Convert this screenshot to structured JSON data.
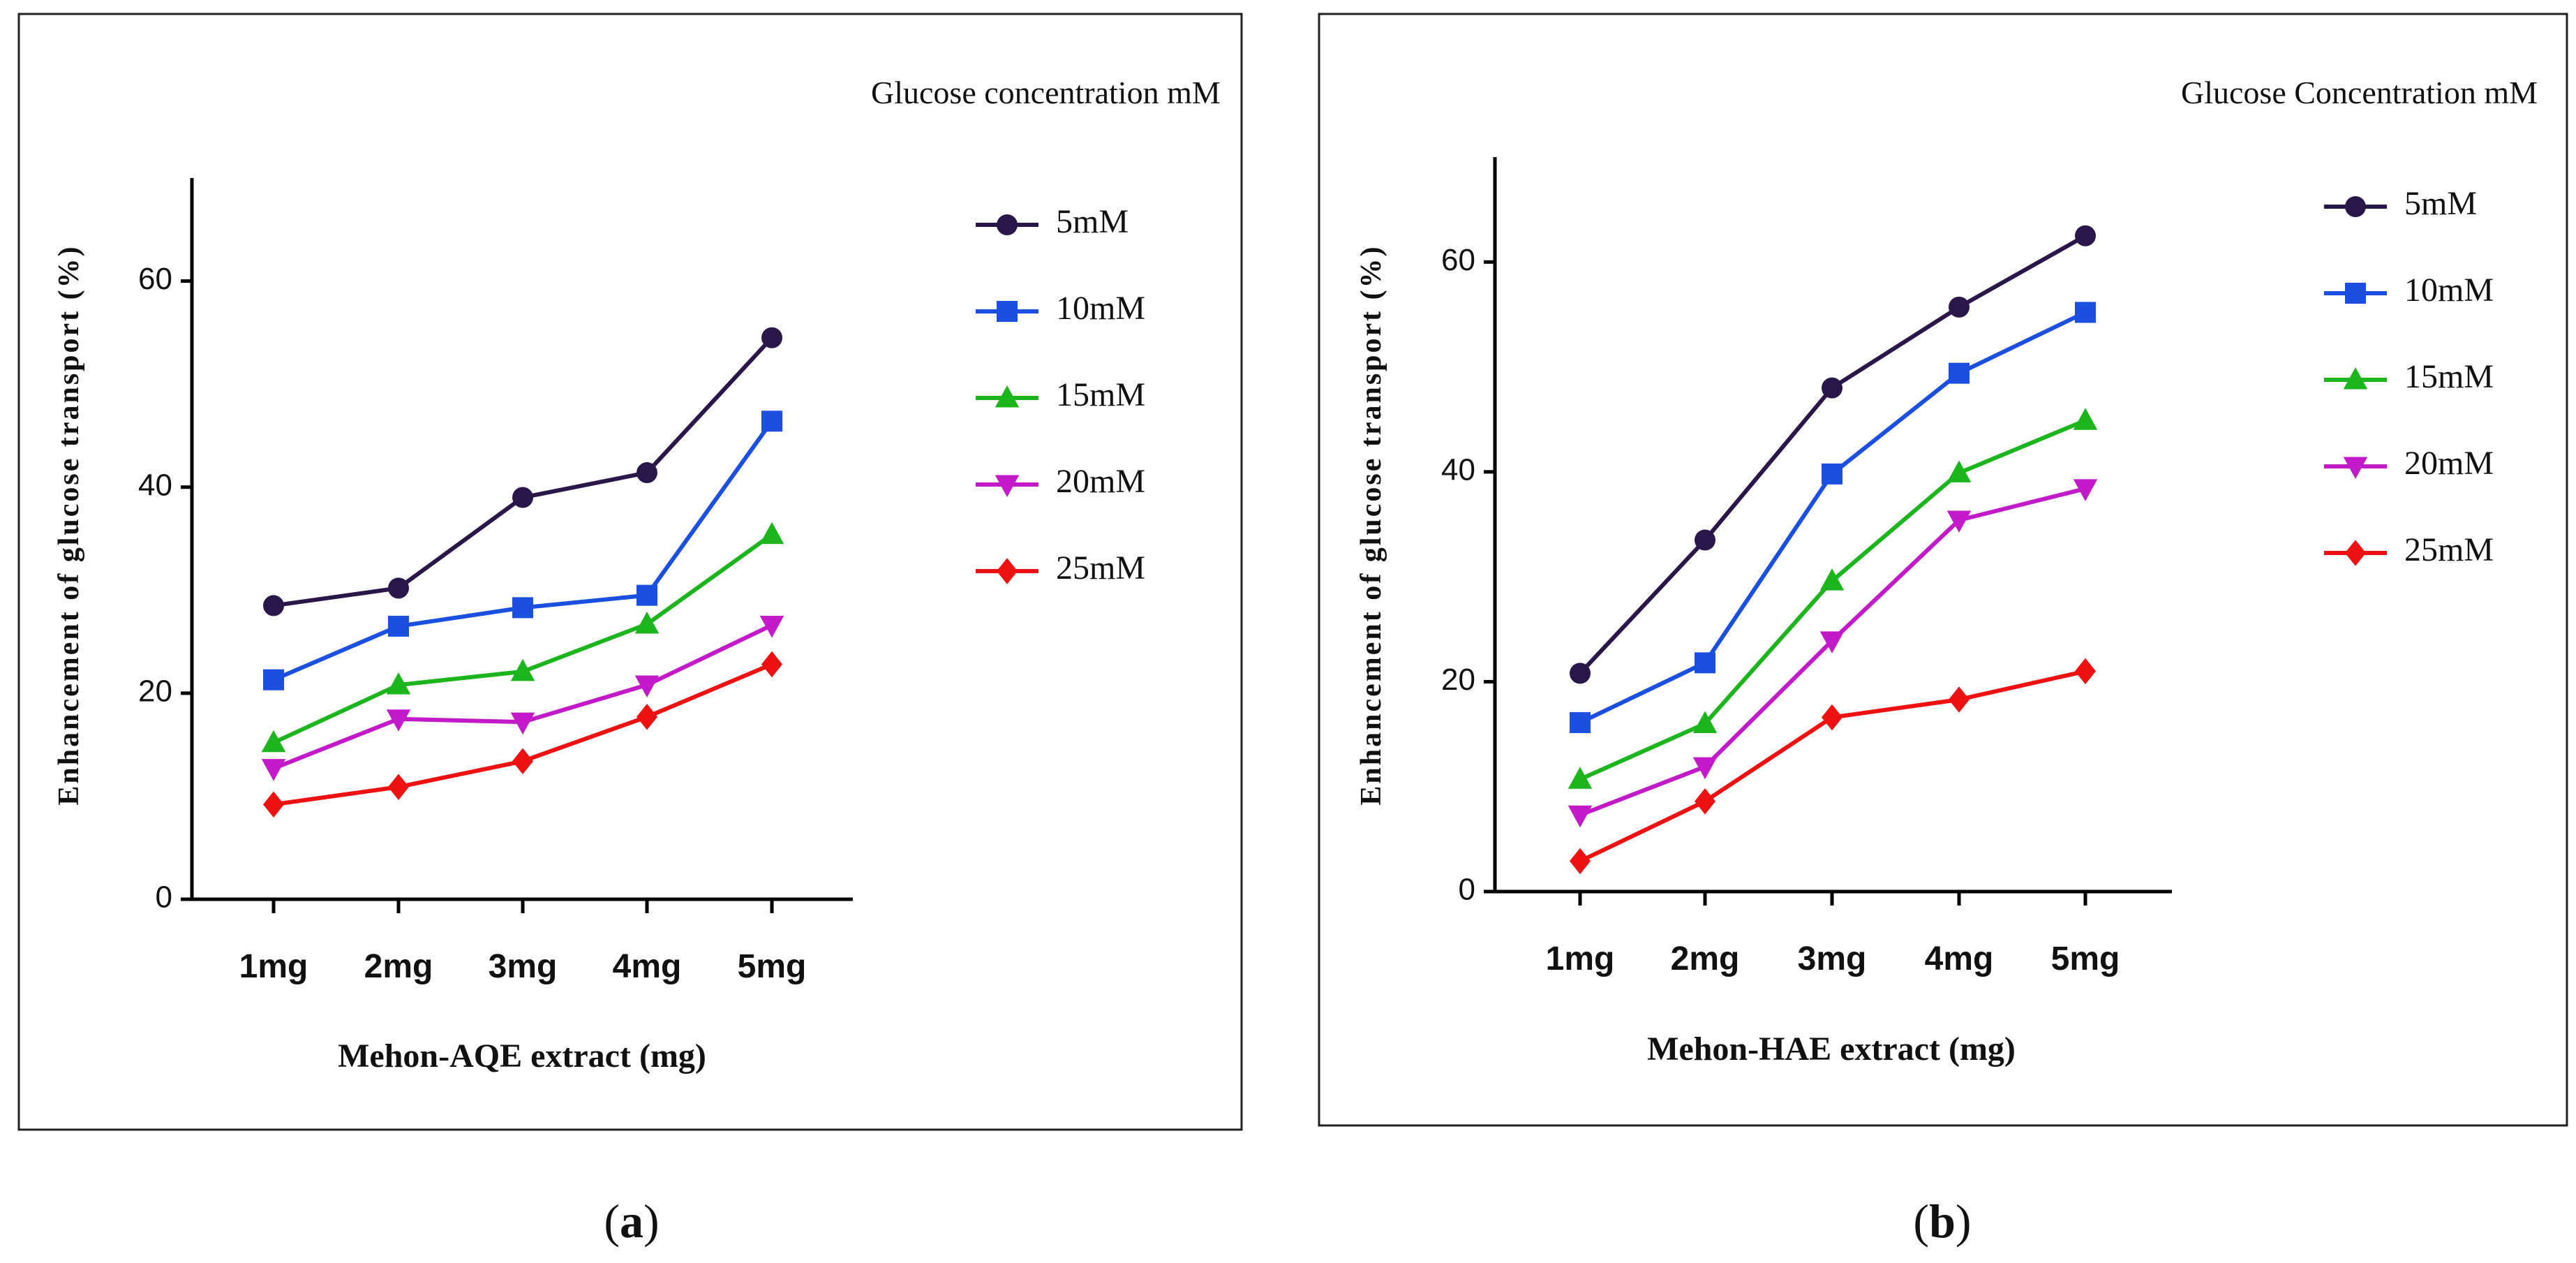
{
  "chart_data": [
    {
      "panel": "a",
      "type": "line",
      "caption_label": "a",
      "categories": [
        "1mg",
        "2mg",
        "3mg",
        "4mg",
        "5mg"
      ],
      "xlabel": "Mehon-AQE extract (mg)",
      "ylabel": "Enhancement of glucose transport (%)",
      "ylim": [
        0,
        70
      ],
      "yticks": [
        0,
        20,
        40,
        60
      ],
      "legend_title": "Glucose concentration mM",
      "legend_position": "right",
      "series": [
        {
          "name": "5mM",
          "marker": "circle",
          "color": "#2a1648",
          "values": [
            28.5,
            30.2,
            39.0,
            41.4,
            54.5
          ]
        },
        {
          "name": "10mM",
          "marker": "square",
          "color": "#1a4fe0",
          "values": [
            21.3,
            26.5,
            28.3,
            29.5,
            46.4
          ]
        },
        {
          "name": "15mM",
          "marker": "triangle-up",
          "color": "#1db51d",
          "values": [
            15.2,
            20.8,
            22.1,
            26.7,
            35.4
          ]
        },
        {
          "name": "20mM",
          "marker": "triangle-down",
          "color": "#c21ac9",
          "values": [
            12.7,
            17.5,
            17.2,
            20.8,
            26.6
          ]
        },
        {
          "name": "25mM",
          "marker": "diamond",
          "color": "#ee1111",
          "values": [
            9.2,
            10.9,
            13.4,
            17.7,
            22.8
          ]
        }
      ]
    },
    {
      "panel": "b",
      "type": "line",
      "caption_label": "b",
      "categories": [
        "1mg",
        "2mg",
        "3mg",
        "4mg",
        "5mg"
      ],
      "xlabel": "Mehon-HAE extract (mg)",
      "ylabel": "Enhancement of glucose transport (%)",
      "ylim": [
        0,
        70
      ],
      "yticks": [
        0,
        20,
        40,
        60
      ],
      "legend_title": "Glucose Concentration mM",
      "legend_position": "right",
      "series": [
        {
          "name": "5mM",
          "marker": "circle",
          "color": "#2a1648",
          "values": [
            20.8,
            33.5,
            48.0,
            55.7,
            62.5
          ]
        },
        {
          "name": "10mM",
          "marker": "square",
          "color": "#1a4fe0",
          "values": [
            16.1,
            21.8,
            39.8,
            49.4,
            55.2
          ]
        },
        {
          "name": "15mM",
          "marker": "triangle-up",
          "color": "#1db51d",
          "values": [
            10.7,
            16.0,
            29.6,
            39.9,
            44.9
          ]
        },
        {
          "name": "20mM",
          "marker": "triangle-down",
          "color": "#c21ac9",
          "values": [
            7.3,
            11.9,
            23.9,
            35.4,
            38.4
          ]
        },
        {
          "name": "25mM",
          "marker": "diamond",
          "color": "#ee1111",
          "values": [
            2.9,
            8.6,
            16.6,
            18.3,
            21.0
          ]
        }
      ]
    }
  ]
}
